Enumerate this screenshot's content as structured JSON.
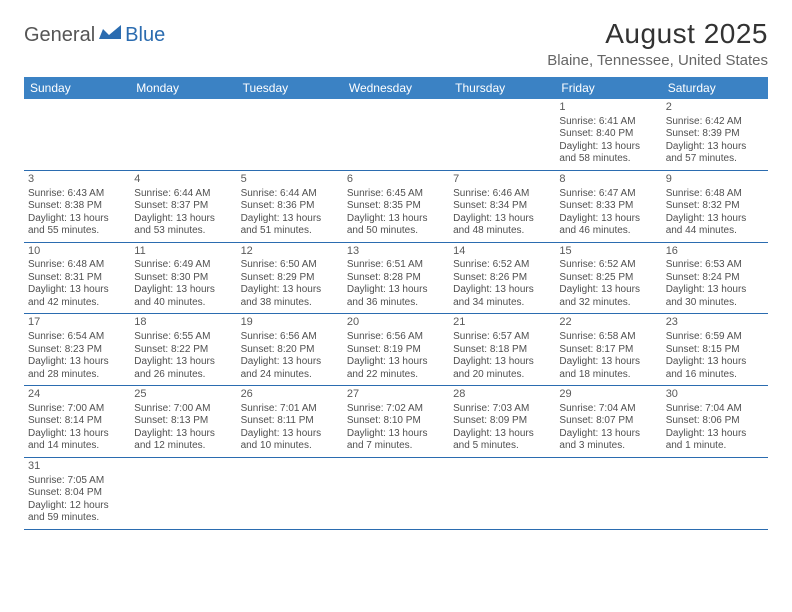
{
  "logo": {
    "brand1": "General",
    "brand2": "Blue"
  },
  "title": "August 2025",
  "subtitle": "Blaine, Tennessee, United States",
  "colors": {
    "header_bg": "#3b82c4",
    "header_text": "#ffffff",
    "divider": "#2b6cb0",
    "body_text": "#505050",
    "title_text": "#333333",
    "subtitle_text": "#666666",
    "brand_blue": "#2b6cb0"
  },
  "column_headers": [
    "Sunday",
    "Monday",
    "Tuesday",
    "Wednesday",
    "Thursday",
    "Friday",
    "Saturday"
  ],
  "weeks": [
    [
      null,
      null,
      null,
      null,
      null,
      {
        "num": "1",
        "sunrise": "Sunrise: 6:41 AM",
        "sunset": "Sunset: 8:40 PM",
        "daylight": "Daylight: 13 hours and 58 minutes."
      },
      {
        "num": "2",
        "sunrise": "Sunrise: 6:42 AM",
        "sunset": "Sunset: 8:39 PM",
        "daylight": "Daylight: 13 hours and 57 minutes."
      }
    ],
    [
      {
        "num": "3",
        "sunrise": "Sunrise: 6:43 AM",
        "sunset": "Sunset: 8:38 PM",
        "daylight": "Daylight: 13 hours and 55 minutes."
      },
      {
        "num": "4",
        "sunrise": "Sunrise: 6:44 AM",
        "sunset": "Sunset: 8:37 PM",
        "daylight": "Daylight: 13 hours and 53 minutes."
      },
      {
        "num": "5",
        "sunrise": "Sunrise: 6:44 AM",
        "sunset": "Sunset: 8:36 PM",
        "daylight": "Daylight: 13 hours and 51 minutes."
      },
      {
        "num": "6",
        "sunrise": "Sunrise: 6:45 AM",
        "sunset": "Sunset: 8:35 PM",
        "daylight": "Daylight: 13 hours and 50 minutes."
      },
      {
        "num": "7",
        "sunrise": "Sunrise: 6:46 AM",
        "sunset": "Sunset: 8:34 PM",
        "daylight": "Daylight: 13 hours and 48 minutes."
      },
      {
        "num": "8",
        "sunrise": "Sunrise: 6:47 AM",
        "sunset": "Sunset: 8:33 PM",
        "daylight": "Daylight: 13 hours and 46 minutes."
      },
      {
        "num": "9",
        "sunrise": "Sunrise: 6:48 AM",
        "sunset": "Sunset: 8:32 PM",
        "daylight": "Daylight: 13 hours and 44 minutes."
      }
    ],
    [
      {
        "num": "10",
        "sunrise": "Sunrise: 6:48 AM",
        "sunset": "Sunset: 8:31 PM",
        "daylight": "Daylight: 13 hours and 42 minutes."
      },
      {
        "num": "11",
        "sunrise": "Sunrise: 6:49 AM",
        "sunset": "Sunset: 8:30 PM",
        "daylight": "Daylight: 13 hours and 40 minutes."
      },
      {
        "num": "12",
        "sunrise": "Sunrise: 6:50 AM",
        "sunset": "Sunset: 8:29 PM",
        "daylight": "Daylight: 13 hours and 38 minutes."
      },
      {
        "num": "13",
        "sunrise": "Sunrise: 6:51 AM",
        "sunset": "Sunset: 8:28 PM",
        "daylight": "Daylight: 13 hours and 36 minutes."
      },
      {
        "num": "14",
        "sunrise": "Sunrise: 6:52 AM",
        "sunset": "Sunset: 8:26 PM",
        "daylight": "Daylight: 13 hours and 34 minutes."
      },
      {
        "num": "15",
        "sunrise": "Sunrise: 6:52 AM",
        "sunset": "Sunset: 8:25 PM",
        "daylight": "Daylight: 13 hours and 32 minutes."
      },
      {
        "num": "16",
        "sunrise": "Sunrise: 6:53 AM",
        "sunset": "Sunset: 8:24 PM",
        "daylight": "Daylight: 13 hours and 30 minutes."
      }
    ],
    [
      {
        "num": "17",
        "sunrise": "Sunrise: 6:54 AM",
        "sunset": "Sunset: 8:23 PM",
        "daylight": "Daylight: 13 hours and 28 minutes."
      },
      {
        "num": "18",
        "sunrise": "Sunrise: 6:55 AM",
        "sunset": "Sunset: 8:22 PM",
        "daylight": "Daylight: 13 hours and 26 minutes."
      },
      {
        "num": "19",
        "sunrise": "Sunrise: 6:56 AM",
        "sunset": "Sunset: 8:20 PM",
        "daylight": "Daylight: 13 hours and 24 minutes."
      },
      {
        "num": "20",
        "sunrise": "Sunrise: 6:56 AM",
        "sunset": "Sunset: 8:19 PM",
        "daylight": "Daylight: 13 hours and 22 minutes."
      },
      {
        "num": "21",
        "sunrise": "Sunrise: 6:57 AM",
        "sunset": "Sunset: 8:18 PM",
        "daylight": "Daylight: 13 hours and 20 minutes."
      },
      {
        "num": "22",
        "sunrise": "Sunrise: 6:58 AM",
        "sunset": "Sunset: 8:17 PM",
        "daylight": "Daylight: 13 hours and 18 minutes."
      },
      {
        "num": "23",
        "sunrise": "Sunrise: 6:59 AM",
        "sunset": "Sunset: 8:15 PM",
        "daylight": "Daylight: 13 hours and 16 minutes."
      }
    ],
    [
      {
        "num": "24",
        "sunrise": "Sunrise: 7:00 AM",
        "sunset": "Sunset: 8:14 PM",
        "daylight": "Daylight: 13 hours and 14 minutes."
      },
      {
        "num": "25",
        "sunrise": "Sunrise: 7:00 AM",
        "sunset": "Sunset: 8:13 PM",
        "daylight": "Daylight: 13 hours and 12 minutes."
      },
      {
        "num": "26",
        "sunrise": "Sunrise: 7:01 AM",
        "sunset": "Sunset: 8:11 PM",
        "daylight": "Daylight: 13 hours and 10 minutes."
      },
      {
        "num": "27",
        "sunrise": "Sunrise: 7:02 AM",
        "sunset": "Sunset: 8:10 PM",
        "daylight": "Daylight: 13 hours and 7 minutes."
      },
      {
        "num": "28",
        "sunrise": "Sunrise: 7:03 AM",
        "sunset": "Sunset: 8:09 PM",
        "daylight": "Daylight: 13 hours and 5 minutes."
      },
      {
        "num": "29",
        "sunrise": "Sunrise: 7:04 AM",
        "sunset": "Sunset: 8:07 PM",
        "daylight": "Daylight: 13 hours and 3 minutes."
      },
      {
        "num": "30",
        "sunrise": "Sunrise: 7:04 AM",
        "sunset": "Sunset: 8:06 PM",
        "daylight": "Daylight: 13 hours and 1 minute."
      }
    ],
    [
      {
        "num": "31",
        "sunrise": "Sunrise: 7:05 AM",
        "sunset": "Sunset: 8:04 PM",
        "daylight": "Daylight: 12 hours and 59 minutes."
      },
      null,
      null,
      null,
      null,
      null,
      null
    ]
  ]
}
